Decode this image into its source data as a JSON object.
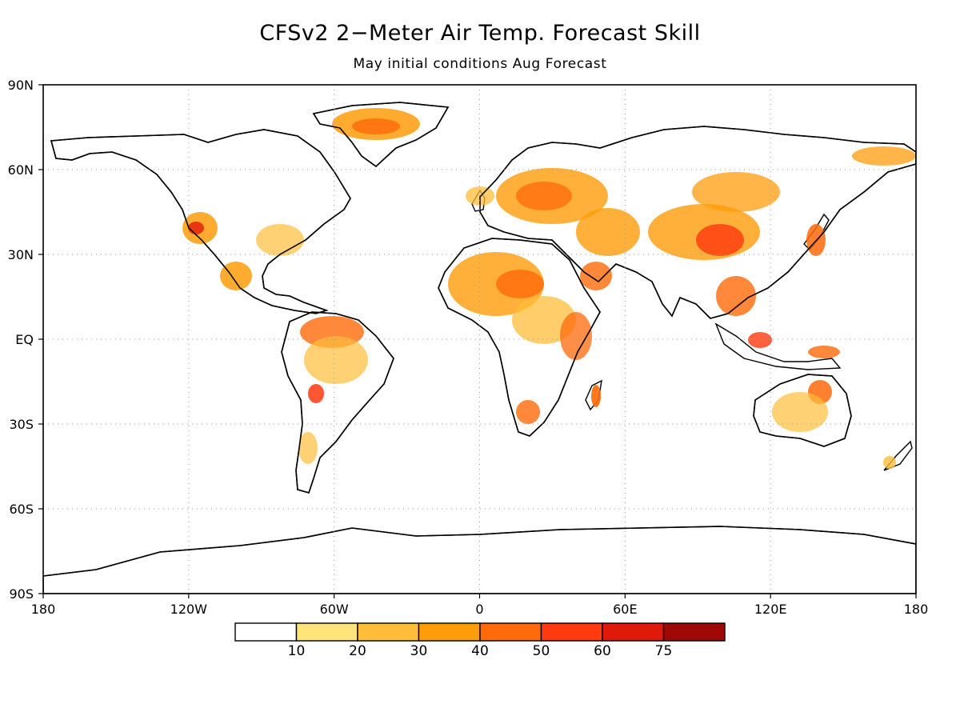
{
  "title": "CFSv2 2−Meter Air Temp. Forecast Skill",
  "subtitle": "May initial conditions   Aug Forecast",
  "map": {
    "projection": "cylindrical-equidistant",
    "lon_range": [
      -180,
      180
    ],
    "lat_range": [
      -90,
      90
    ],
    "grid": "dotted",
    "lat_ticks": [
      {
        "lat": 90,
        "label": "90N"
      },
      {
        "lat": 60,
        "label": "60N"
      },
      {
        "lat": 30,
        "label": "30N"
      },
      {
        "lat": 0,
        "label": "EQ"
      },
      {
        "lat": -30,
        "label": "30S"
      },
      {
        "lat": -60,
        "label": "60S"
      },
      {
        "lat": -90,
        "label": "90S"
      }
    ],
    "lon_ticks": [
      {
        "lon": -180,
        "label": "180"
      },
      {
        "lon": -120,
        "label": "120W"
      },
      {
        "lon": -60,
        "label": "60W"
      },
      {
        "lon": 0,
        "label": "0"
      },
      {
        "lon": 60,
        "label": "60E"
      },
      {
        "lon": 120,
        "label": "120E"
      },
      {
        "lon": 180,
        "label": "180"
      }
    ]
  },
  "colorbar": {
    "labels": [
      "10",
      "20",
      "30",
      "40",
      "50",
      "60",
      "75"
    ],
    "colors": [
      "#ffffff",
      "#ffe47a",
      "#ffbd3a",
      "#ff9c0a",
      "#ff6a0a",
      "#ff3a0f",
      "#e01a0a",
      "#a00808"
    ]
  },
  "land_color": "#ffffff",
  "coast_color": "#000000"
}
